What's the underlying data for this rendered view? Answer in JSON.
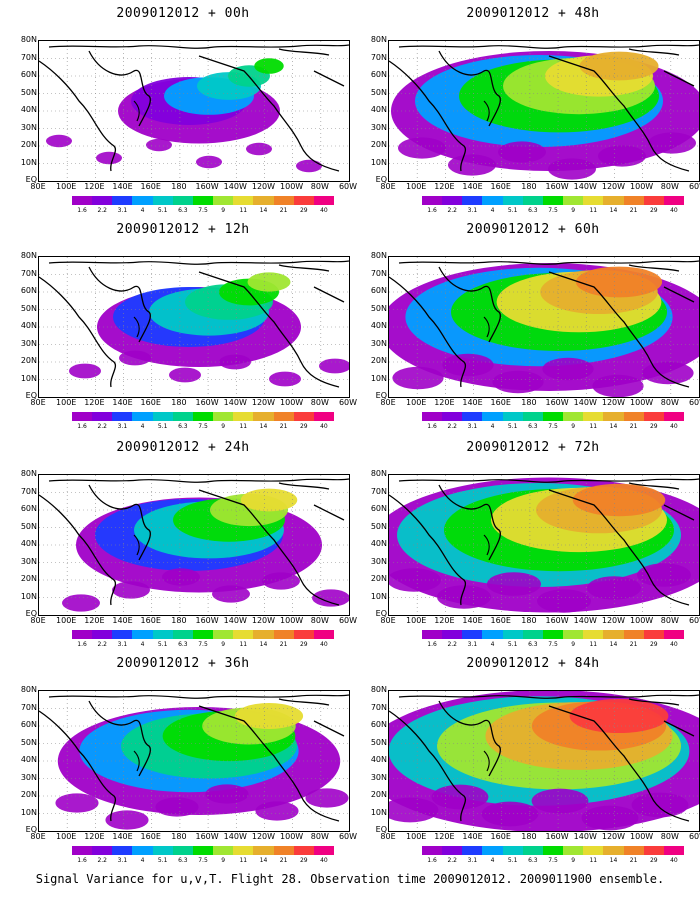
{
  "panels": [
    {
      "title": "2009012012 + 00h",
      "intensity": 0.15
    },
    {
      "title": "2009012012 + 48h",
      "intensity": 0.7
    },
    {
      "title": "2009012012 + 12h",
      "intensity": 0.3
    },
    {
      "title": "2009012012 + 60h",
      "intensity": 0.78
    },
    {
      "title": "2009012012 + 24h",
      "intensity": 0.45
    },
    {
      "title": "2009012012 + 72h",
      "intensity": 0.85
    },
    {
      "title": "2009012012 + 36h",
      "intensity": 0.58
    },
    {
      "title": "2009012012 + 84h",
      "intensity": 0.92
    }
  ],
  "lon_labels": [
    "80E",
    "100E",
    "120E",
    "140E",
    "160E",
    "180",
    "160W",
    "140W",
    "120W",
    "100W",
    "80W",
    "60W"
  ],
  "lat_labels": [
    "80N",
    "70N",
    "60N",
    "50N",
    "40N",
    "30N",
    "20N",
    "10N",
    "EQ"
  ],
  "colorbar": {
    "levels": [
      "1.6",
      "2.2",
      "3.1",
      "4",
      "5.1",
      "6.3",
      "7.5",
      "9",
      "11",
      "14",
      "21",
      "29",
      "40"
    ],
    "colors": [
      "#a000c8",
      "#8200dc",
      "#1e3cff",
      "#00a0ff",
      "#00c8c8",
      "#00d28c",
      "#00dc00",
      "#a0e632",
      "#e6dc32",
      "#e6af2d",
      "#f08228",
      "#fa3c3c",
      "#f00082"
    ]
  },
  "footer": "Signal Variance for u,v,T. Flight 28. Observation time 2009012012. 2009011900 ensemble."
}
